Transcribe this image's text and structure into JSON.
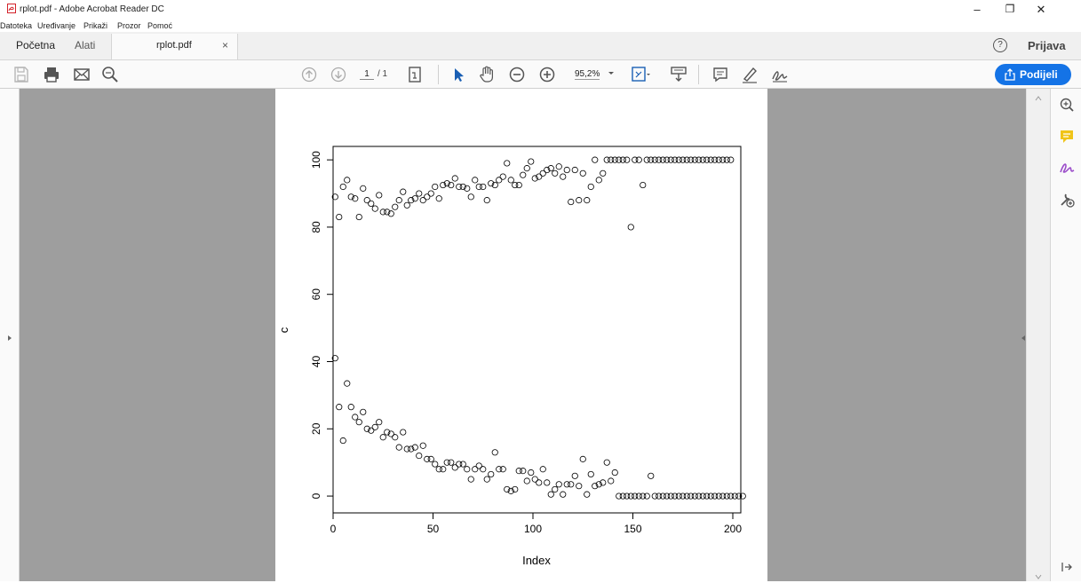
{
  "window": {
    "title": "rplot.pdf - Adobe Acrobat Reader DC",
    "minimize_glyph": "–",
    "restore_glyph": "❐",
    "close_glyph": "✕"
  },
  "menu": [
    "Datoteka",
    "Uređivanje",
    "Prikaži",
    "Prozor",
    "Pomoć"
  ],
  "tabs": {
    "home": "Početna",
    "tools": "Alati",
    "document": "rplot.pdf",
    "close_glyph": "×"
  },
  "account": {
    "help_glyph": "?",
    "sign_in": "Prijava"
  },
  "toolbar": {
    "page_current": "1",
    "page_total": "/ 1",
    "zoom": "95,2%",
    "share": "Podijeli",
    "accent_color": "#1473e6"
  },
  "icons": [
    "pdf-file-icon",
    "save-icon",
    "print-icon",
    "email-icon",
    "search-zoom-icon",
    "page-up-icon",
    "page-down-icon",
    "page-fit-icon",
    "select-arrow-icon",
    "hand-icon",
    "zoom-out-icon",
    "zoom-in-icon",
    "zoom-dropdown-icon",
    "fit-page-icon",
    "scroll-mode-icon",
    "comment-icon",
    "highlight-pen-icon",
    "sign-icon",
    "share-icon",
    "zoom-panel-icon",
    "comment-panel-icon",
    "fill-sign-panel-icon",
    "more-tools-icon",
    "expand-left-icon",
    "collapse-right-icon",
    "panel-toggle-icon"
  ],
  "chart_data": {
    "type": "scatter",
    "xlabel": "Index",
    "ylabel": "c",
    "xlim": [
      0,
      204
    ],
    "ylim": [
      -5,
      104
    ],
    "x_ticks": [
      0,
      50,
      100,
      150,
      200
    ],
    "y_ticks": [
      0,
      20,
      40,
      60,
      80,
      100
    ],
    "upper_y": [
      89.0,
      83.0,
      92.0,
      94.0,
      89.0,
      88.5,
      83.0,
      91.5,
      88.0,
      87.0,
      85.5,
      89.5,
      84.5,
      84.5,
      84.0,
      86.0,
      88.0,
      90.5,
      86.5,
      88.0,
      88.5,
      90.0,
      88.0,
      89.0,
      90.0,
      92.0,
      88.5,
      92.5,
      93.0,
      92.5,
      94.5,
      92.0,
      92.0,
      91.5,
      89.0,
      94.0,
      92.0,
      92.0,
      88.0,
      93.0,
      92.5,
      94.0,
      95.0,
      99.0,
      94.0,
      92.5,
      92.5,
      95.5,
      97.5,
      99.5,
      94.5,
      95.0,
      96.0,
      97.0,
      97.5,
      96.0,
      98.0,
      95.0,
      97.0,
      87.5,
      97.0,
      88.0,
      96.0,
      88.0,
      92.0,
      100,
      94.0,
      96.0,
      100,
      100,
      100,
      100,
      100,
      100,
      80,
      100,
      100,
      92.5,
      100,
      100,
      100,
      100,
      100,
      100,
      100,
      100,
      100,
      100,
      100,
      100,
      100,
      100,
      100,
      100,
      100,
      100,
      100,
      100,
      100,
      100
    ],
    "lower_y": [
      41.0,
      26.5,
      16.5,
      33.5,
      26.5,
      23.5,
      22.0,
      25.0,
      20.0,
      19.5,
      20.5,
      22.0,
      17.5,
      19.0,
      18.5,
      17.5,
      14.5,
      19.0,
      14.0,
      14.0,
      14.5,
      12.0,
      15.0,
      11.0,
      11.0,
      9.5,
      8.0,
      8.0,
      10.0,
      10.0,
      8.5,
      9.5,
      9.5,
      8.0,
      5.0,
      8.0,
      9.0,
      8.0,
      5.0,
      6.5,
      13.0,
      8.0,
      8.0,
      2.0,
      1.5,
      2.0,
      7.5,
      7.5,
      4.5,
      7.0,
      5.0,
      4.0,
      8.0,
      4.0,
      0.5,
      2.0,
      3.5,
      0.5,
      3.5,
      3.5,
      6.0,
      3.0,
      11.0,
      0.5,
      6.5,
      3.0,
      3.5,
      4.0,
      10.0,
      4.5,
      7.0,
      0,
      0,
      0,
      0,
      0,
      0,
      0,
      0,
      6.0,
      0,
      0,
      0,
      0,
      0,
      0,
      0,
      0,
      0,
      0,
      0,
      0,
      0,
      0,
      0,
      0,
      0,
      0,
      0,
      0,
      0,
      0,
      0
    ]
  }
}
